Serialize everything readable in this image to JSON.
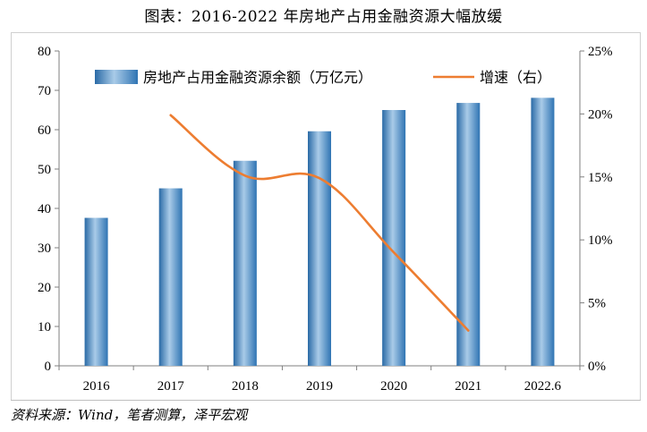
{
  "title_prefix": "图表：",
  "title_main": "2016-2022 年房地产占用金融资源大幅放缓",
  "source_note": "资料来源：Wind，笔者测算，泽平宏观",
  "chart_data": {
    "type": "bar",
    "categories": [
      "2016",
      "2017",
      "2018",
      "2019",
      "2020",
      "2021",
      "2022.6"
    ],
    "series": [
      {
        "name": "房地产占用金融资源余额（万亿元）",
        "type": "bar",
        "axis": "left",
        "color": "#3a7fb8",
        "values": [
          37.6,
          45.1,
          52.1,
          59.6,
          65.0,
          66.8,
          68.1
        ]
      },
      {
        "name": "增速（右）",
        "type": "line",
        "axis": "right",
        "color": "#ed7d31",
        "values": [
          null,
          0.199,
          0.151,
          0.149,
          0.09,
          0.028,
          null
        ]
      }
    ],
    "ylim_left": [
      0,
      80
    ],
    "yticks_left": [
      "0",
      "10",
      "20",
      "30",
      "40",
      "50",
      "60",
      "70",
      "80"
    ],
    "ylim_right": [
      0,
      0.25
    ],
    "yticks_right": [
      "0%",
      "5%",
      "10%",
      "15%",
      "20%",
      "25%"
    ],
    "legend_position": "top"
  }
}
